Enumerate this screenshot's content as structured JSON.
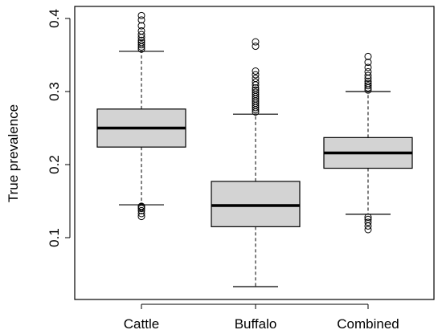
{
  "chart_data": {
    "type": "boxplot",
    "title": "",
    "xlabel": "",
    "ylabel": "True prevalence",
    "ylim": [
      0.03,
      0.41
    ],
    "yticks": [
      0.1,
      0.2,
      0.3,
      0.4
    ],
    "ytick_labels": [
      "0.1",
      "0.2",
      "0.3",
      "0.4"
    ],
    "categories": [
      "Cattle",
      "Buffalo",
      "Combined"
    ],
    "grid": false,
    "box_fill": "#d3d3d3",
    "line_color": "#000000",
    "boxes": [
      {
        "category": "Cattle",
        "whisker_low": 0.145,
        "q1": 0.224,
        "median": 0.25,
        "q3": 0.276,
        "whisker_high": 0.355,
        "outliers": [
          0.129,
          0.133,
          0.137,
          0.14,
          0.142,
          0.143,
          0.358,
          0.361,
          0.364,
          0.367,
          0.37,
          0.374,
          0.378,
          0.383,
          0.39,
          0.398,
          0.404
        ]
      },
      {
        "category": "Buffalo",
        "whisker_low": 0.033,
        "q1": 0.115,
        "median": 0.144,
        "q3": 0.177,
        "whisker_high": 0.269,
        "outliers": [
          0.272,
          0.275,
          0.278,
          0.281,
          0.284,
          0.287,
          0.29,
          0.293,
          0.296,
          0.299,
          0.302,
          0.305,
          0.309,
          0.313,
          0.318,
          0.323,
          0.328,
          0.362,
          0.368
        ]
      },
      {
        "category": "Combined",
        "whisker_low": 0.132,
        "q1": 0.195,
        "median": 0.216,
        "q3": 0.237,
        "whisker_high": 0.3,
        "outliers": [
          0.111,
          0.116,
          0.121,
          0.125,
          0.128,
          0.302,
          0.305,
          0.308,
          0.311,
          0.314,
          0.318,
          0.322,
          0.327,
          0.333,
          0.34,
          0.348
        ]
      }
    ]
  }
}
